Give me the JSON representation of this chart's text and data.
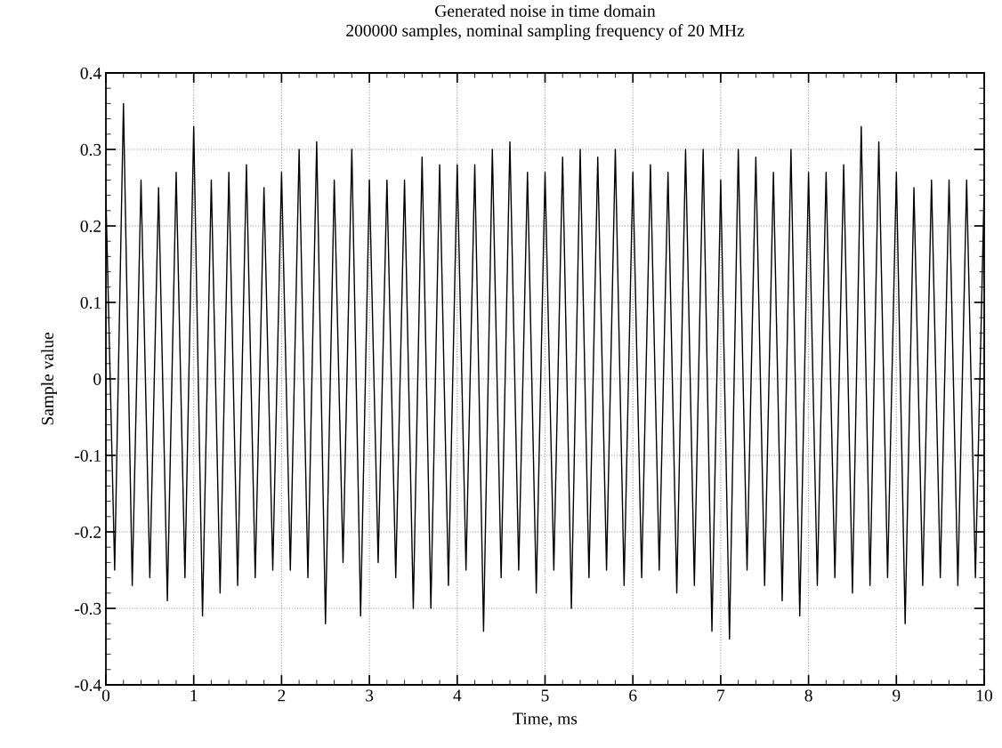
{
  "chart_data": {
    "type": "line",
    "title": "Generated noise in time domain",
    "subtitle": "200000 samples, nominal sampling frequency of 20 MHz",
    "xlabel": "Time, ms",
    "ylabel": "Sample value",
    "x": [
      0,
      0.1,
      0.2,
      0.3,
      0.4,
      0.5,
      0.6,
      0.7,
      0.8,
      0.9,
      1,
      1.1,
      1.2,
      1.3,
      1.4,
      1.5,
      1.6,
      1.7,
      1.8,
      1.9,
      2,
      2.1,
      2.2,
      2.3,
      2.4,
      2.5,
      2.6,
      2.7,
      2.8,
      2.9,
      3,
      3.1,
      3.2,
      3.3,
      3.4,
      3.5,
      3.6,
      3.7,
      3.8,
      3.9,
      4,
      4.1,
      4.2,
      4.3,
      4.4,
      4.5,
      4.6,
      4.7,
      4.8,
      4.9,
      5,
      5.1,
      5.2,
      5.3,
      5.4,
      5.5,
      5.6,
      5.7,
      5.8,
      5.9,
      6,
      6.1,
      6.2,
      6.3,
      6.4,
      6.5,
      6.6,
      6.7,
      6.8,
      6.9,
      7,
      7.1,
      7.2,
      7.3,
      7.4,
      7.5,
      7.6,
      7.7,
      7.8,
      7.9,
      8,
      8.1,
      8.2,
      8.3,
      8.4,
      8.5,
      8.6,
      8.7,
      8.8,
      8.9,
      9,
      9.1,
      9.2,
      9.3,
      9.4,
      9.5,
      9.6,
      9.7,
      9.8,
      9.9,
      10
    ],
    "series": [
      {
        "color": "#000000",
        "values": [
          0.24,
          -0.25,
          0.36,
          -0.27,
          0.26,
          -0.26,
          0.25,
          -0.29,
          0.27,
          -0.26,
          0.33,
          -0.31,
          0.26,
          -0.28,
          0.27,
          -0.27,
          0.28,
          -0.26,
          0.25,
          -0.25,
          0.27,
          -0.25,
          0.3,
          -0.26,
          0.31,
          -0.32,
          0.26,
          -0.24,
          0.3,
          -0.31,
          0.26,
          -0.24,
          0.26,
          -0.26,
          0.26,
          -0.3,
          0.29,
          -0.3,
          0.28,
          -0.27,
          0.28,
          -0.25,
          0.28,
          -0.33,
          0.3,
          -0.26,
          0.31,
          -0.25,
          0.27,
          -0.28,
          0.27,
          -0.25,
          0.29,
          -0.3,
          0.3,
          -0.26,
          0.29,
          -0.25,
          0.3,
          -0.27,
          0.27,
          -0.26,
          0.28,
          -0.25,
          0.27,
          -0.28,
          0.3,
          -0.27,
          0.3,
          -0.33,
          0.26,
          -0.34,
          0.3,
          -0.25,
          0.29,
          -0.27,
          0.27,
          -0.29,
          0.3,
          -0.31,
          0.27,
          -0.27,
          0.27,
          -0.26,
          0.28,
          -0.28,
          0.33,
          -0.27,
          0.31,
          -0.26,
          0.27,
          -0.32,
          0.25,
          -0.27,
          0.26,
          -0.26,
          0.26,
          -0.27,
          0.26,
          -0.26,
          0.25
        ]
      }
    ],
    "xlim": [
      0,
      10
    ],
    "xticks": [
      0,
      1,
      2,
      3,
      4,
      5,
      6,
      7,
      8,
      9,
      10
    ],
    "ylim": [
      -0.4,
      0.4
    ],
    "yticks": [
      {
        "value": -0.4,
        "label": "-0.4"
      },
      {
        "value": -0.3,
        "label": "-0.3"
      },
      {
        "value": -0.2,
        "label": "-0.2"
      },
      {
        "value": -0.1,
        "label": "-0.1"
      },
      0,
      0.1,
      0.2,
      0.3,
      0.4
    ],
    "grid": true,
    "line_style": "solid",
    "marker": "none"
  }
}
